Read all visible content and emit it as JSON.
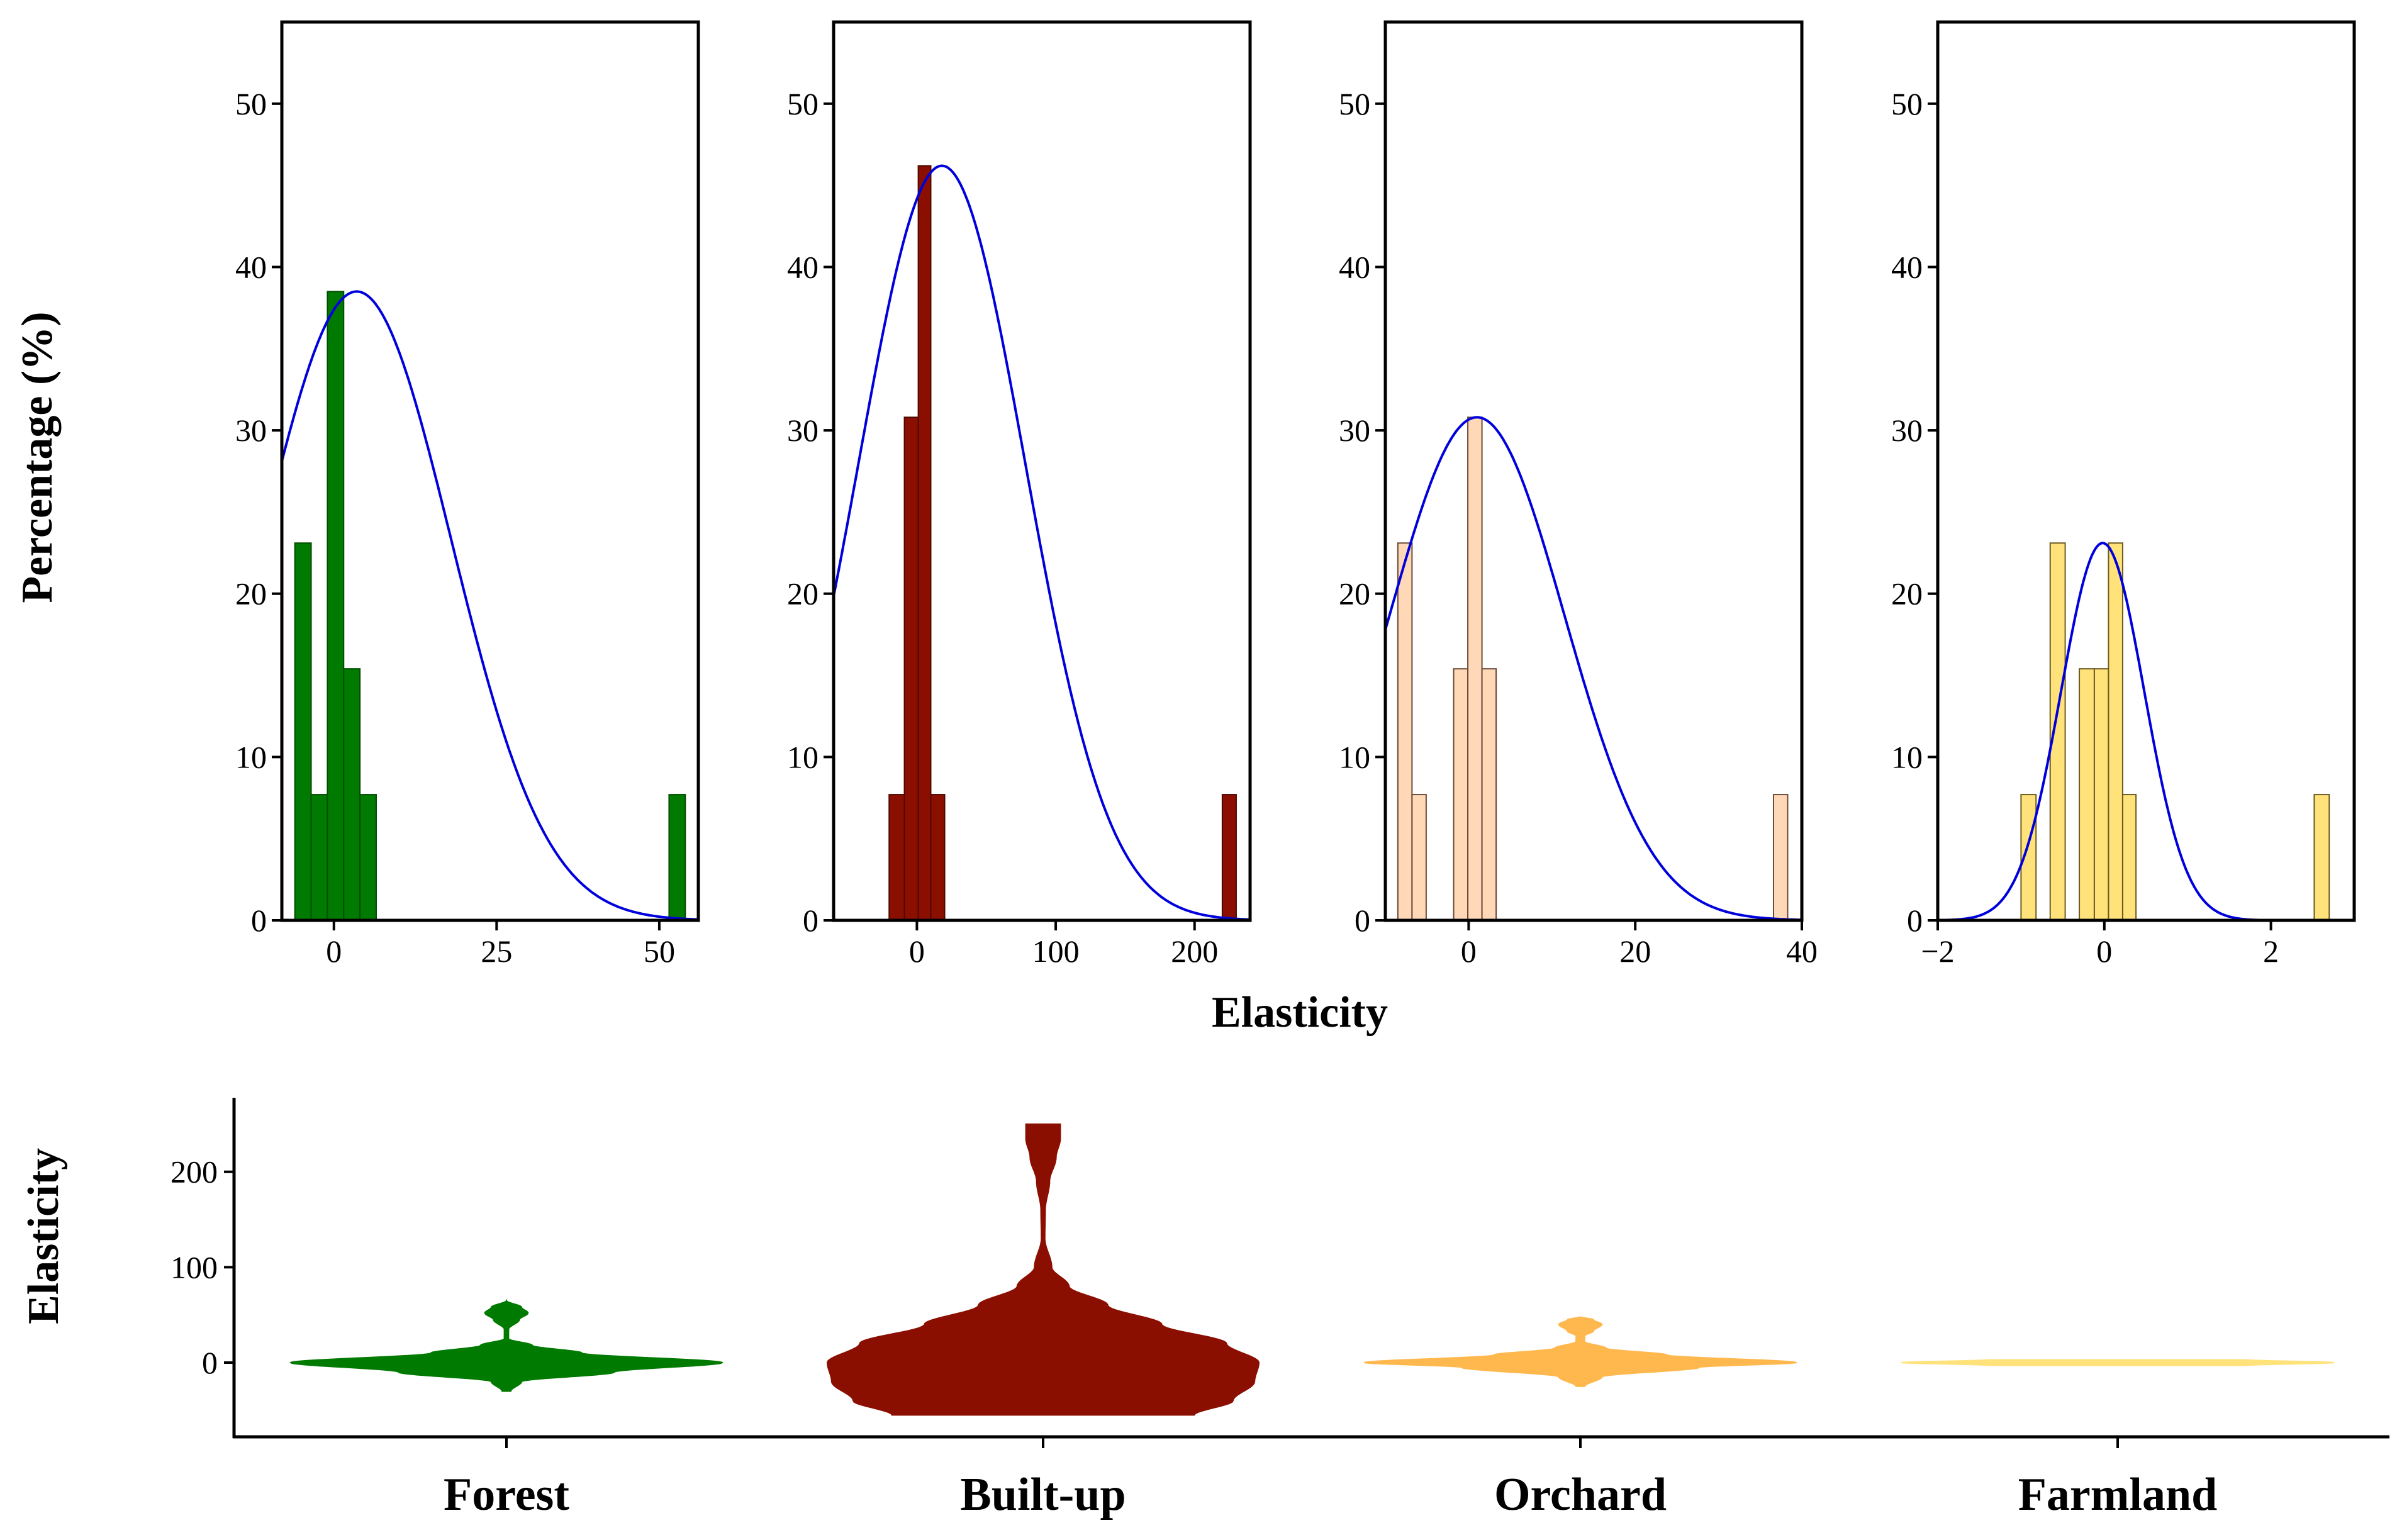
{
  "chart_data": {
    "type": "histogram-with-normal-fit",
    "ylabel": "Percentage (%)",
    "xlabel": "Elasticity",
    "y_ticks": [
      0,
      10,
      20,
      30,
      40,
      50
    ],
    "ylim": [
      0,
      55
    ],
    "fit_line_color": "#0000dd",
    "panels": [
      {
        "name": "Forest",
        "color": "#007a00",
        "edge_color": "#004d00",
        "xlim": [
          -8,
          56
        ],
        "x_ticks": [
          0,
          25,
          50
        ],
        "x_tick_labels": [
          "0",
          "25",
          "50"
        ],
        "bins": [
          {
            "x0": -6.0,
            "x1": -3.5,
            "pct": 23.1
          },
          {
            "x0": -3.5,
            "x1": -1.0,
            "pct": 7.7
          },
          {
            "x0": -1.0,
            "x1": 1.5,
            "pct": 38.5
          },
          {
            "x0": 1.5,
            "x1": 4.0,
            "pct": 15.4
          },
          {
            "x0": 4.0,
            "x1": 6.5,
            "pct": 7.7
          },
          {
            "x0": 51.5,
            "x1": 54.0,
            "pct": 7.7
          }
        ],
        "fit": {
          "mean": 3.5,
          "sd": 14.5,
          "peak": 38.5
        }
      },
      {
        "name": "Built-up",
        "color": "#8b0f00",
        "edge_color": "#4d0800",
        "xlim": [
          -60,
          240
        ],
        "x_ticks": [
          0,
          100,
          200
        ],
        "x_tick_labels": [
          "0",
          "100",
          "200"
        ],
        "bins": [
          {
            "x0": -20,
            "x1": -9,
            "pct": 7.7
          },
          {
            "x0": -9,
            "x1": 1,
            "pct": 30.8
          },
          {
            "x0": 1,
            "x1": 10,
            "pct": 46.2
          },
          {
            "x0": 10,
            "x1": 20,
            "pct": 7.7
          },
          {
            "x0": 220,
            "x1": 230,
            "pct": 7.7
          }
        ],
        "fit": {
          "mean": 18,
          "sd": 60,
          "peak": 46.2
        }
      },
      {
        "name": "Orchard",
        "color": "#ffd8b8",
        "edge_color": "#6b4a38",
        "xlim": [
          -10,
          40
        ],
        "x_ticks": [
          0,
          20,
          40
        ],
        "x_tick_labels": [
          "0",
          "20",
          "40"
        ],
        "bins": [
          {
            "x0": -8.5,
            "x1": -6.8,
            "pct": 23.1
          },
          {
            "x0": -6.8,
            "x1": -5.1,
            "pct": 7.7
          },
          {
            "x0": -1.8,
            "x1": -0.1,
            "pct": 15.4
          },
          {
            "x0": -0.1,
            "x1": 1.6,
            "pct": 30.8
          },
          {
            "x0": 1.6,
            "x1": 3.3,
            "pct": 15.4
          },
          {
            "x0": 36.6,
            "x1": 38.3,
            "pct": 7.7
          }
        ],
        "fit": {
          "mean": 1.0,
          "sd": 10.5,
          "peak": 30.8
        }
      },
      {
        "name": "Farmland",
        "color": "#ffe27a",
        "edge_color": "#6b5a20",
        "xlim": [
          -2,
          3
        ],
        "x_ticks": [
          -2,
          0,
          2
        ],
        "x_tick_labels": [
          "−2",
          "0",
          "2"
        ],
        "bins": [
          {
            "x0": -1.0,
            "x1": -0.82,
            "pct": 7.7
          },
          {
            "x0": -0.65,
            "x1": -0.47,
            "pct": 23.1
          },
          {
            "x0": -0.3,
            "x1": -0.12,
            "pct": 15.4
          },
          {
            "x0": -0.12,
            "x1": 0.05,
            "pct": 15.4
          },
          {
            "x0": 0.05,
            "x1": 0.22,
            "pct": 23.1
          },
          {
            "x0": 0.22,
            "x1": 0.38,
            "pct": 7.7
          },
          {
            "x0": 2.52,
            "x1": 2.7,
            "pct": 7.7
          }
        ],
        "fit": {
          "mean": -0.02,
          "sd": 0.5,
          "peak": 23.1
        }
      }
    ],
    "violin": {
      "type": "violin",
      "ylabel": "Elasticity",
      "y_ticks": [
        0,
        100,
        200
      ],
      "ylim": [
        -75,
        275
      ],
      "categories": [
        "Forest",
        "Built-up",
        "Orchard",
        "Farmland"
      ],
      "colors": [
        "#007a00",
        "#8b0f00",
        "#ffb84d",
        "#ffe27a"
      ],
      "shapes": [
        {
          "y_min": -30,
          "y_max": 65,
          "profile": [
            [
              -30,
              0.02
            ],
            [
              -20,
              0.07
            ],
            [
              -10,
              0.5
            ],
            [
              0,
              1.0
            ],
            [
              10,
              0.35
            ],
            [
              18,
              0.12
            ],
            [
              25,
              0.01
            ],
            [
              35,
              0.01
            ],
            [
              45,
              0.06
            ],
            [
              52,
              0.1
            ],
            [
              58,
              0.07
            ],
            [
              65,
              0.0
            ]
          ]
        },
        {
          "y_min": -55,
          "y_max": 250,
          "profile": [
            [
              -55,
              0.7
            ],
            [
              -40,
              0.88
            ],
            [
              -20,
              0.98
            ],
            [
              0,
              1.0
            ],
            [
              20,
              0.85
            ],
            [
              40,
              0.55
            ],
            [
              60,
              0.3
            ],
            [
              80,
              0.12
            ],
            [
              100,
              0.04
            ],
            [
              130,
              0.008
            ],
            [
              160,
              0.01
            ],
            [
              190,
              0.03
            ],
            [
              215,
              0.06
            ],
            [
              235,
              0.08
            ],
            [
              250,
              0.08
            ]
          ]
        },
        {
          "y_min": -25,
          "y_max": 48,
          "profile": [
            [
              -25,
              0.02
            ],
            [
              -15,
              0.1
            ],
            [
              -5,
              0.55
            ],
            [
              0,
              1.0
            ],
            [
              8,
              0.4
            ],
            [
              15,
              0.12
            ],
            [
              22,
              0.02
            ],
            [
              28,
              0.02
            ],
            [
              33,
              0.06
            ],
            [
              40,
              0.1
            ],
            [
              45,
              0.06
            ],
            [
              48,
              0.0
            ]
          ]
        },
        {
          "y_min": -3,
          "y_max": 3,
          "profile": [
            [
              -3,
              0.6
            ],
            [
              0,
              1.0
            ],
            [
              3,
              0.6
            ]
          ]
        }
      ]
    }
  }
}
